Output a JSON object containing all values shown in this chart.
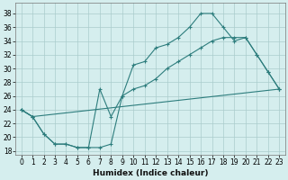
{
  "xlabel": "Humidex (Indice chaleur)",
  "background_color": "#d5eeee",
  "grid_color": "#aacccc",
  "line_color": "#2d7d7d",
  "xlim": [
    -0.5,
    23.5
  ],
  "ylim": [
    17.5,
    39.5
  ],
  "xticks": [
    0,
    1,
    2,
    3,
    4,
    5,
    6,
    7,
    8,
    9,
    10,
    11,
    12,
    13,
    14,
    15,
    16,
    17,
    18,
    19,
    20,
    21,
    22,
    23
  ],
  "yticks": [
    18,
    20,
    22,
    24,
    26,
    28,
    30,
    32,
    34,
    36,
    38
  ],
  "line1_x": [
    0,
    1,
    2,
    3,
    4,
    5,
    6,
    7,
    8,
    9,
    10,
    11,
    12,
    13,
    14,
    15,
    16,
    17,
    18,
    19,
    20,
    21,
    22,
    23
  ],
  "line1_y": [
    24,
    23,
    20.5,
    19,
    19,
    18.5,
    18.5,
    18.5,
    19,
    26,
    27,
    27.5,
    28.5,
    30,
    31,
    32,
    33,
    34,
    34.5,
    34.5,
    34.5,
    32,
    29.5,
    27
  ],
  "line2_x": [
    0,
    1,
    2,
    3,
    4,
    5,
    6,
    7,
    8,
    9,
    10,
    11,
    12,
    13,
    14,
    15,
    16,
    17,
    18,
    19,
    20,
    21,
    22,
    23
  ],
  "line2_y": [
    24,
    23,
    20.5,
    19,
    19,
    18.5,
    18.5,
    27,
    23,
    26,
    30.5,
    31,
    33,
    33.5,
    34.5,
    36,
    38,
    38,
    36,
    34,
    34.5,
    32,
    29.5,
    27
  ],
  "line3_x": [
    0,
    1,
    23
  ],
  "line3_y": [
    24,
    23,
    27
  ]
}
